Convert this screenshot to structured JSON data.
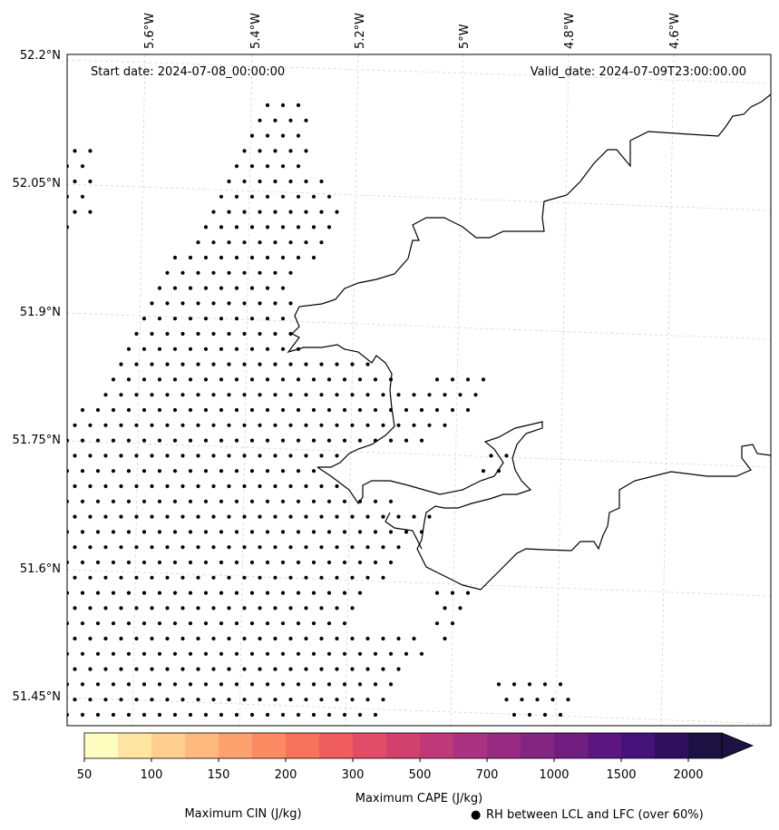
{
  "map": {
    "start_date": "Start date: 2024-07-08_00:00:00",
    "valid_date": "Valid_date: 2024-07-09T23:00:00.00",
    "lon_labels": [
      "5.6°W",
      "5.4°W",
      "5.2°W",
      "5°W",
      "4.8°W",
      "4.6°W"
    ],
    "lat_labels": [
      "52.2°N",
      "52.05°N",
      "51.9°N",
      "51.75°N",
      "51.6°N",
      "51.45°N"
    ],
    "coastline_color": "#000000",
    "dot_color": "#000000"
  },
  "colorbar": {
    "label": "Maximum CAPE (J/kg)",
    "tick_labels": [
      "50",
      "100",
      "150",
      "200",
      "300",
      "500",
      "700",
      "1000",
      "1500",
      "2000"
    ],
    "colors": [
      "#fffdbf",
      "#fee6a2",
      "#fecf8f",
      "#feb97e",
      "#fda26f",
      "#fc8a62",
      "#f8735c",
      "#f05d5e",
      "#e14d66",
      "#d0416e",
      "#bd3977",
      "#aa3280",
      "#962b81",
      "#832681",
      "#701f81",
      "#5b1681",
      "#451279",
      "#2f0f5e",
      "#1c1140"
    ],
    "extend": "max"
  },
  "legend": {
    "cin_label": "Maximum CIN (J/kg)",
    "cin_color": "#ff0000",
    "rh_symbol": "●",
    "rh_label": "RH between LCL and LFC (over 60%)"
  }
}
